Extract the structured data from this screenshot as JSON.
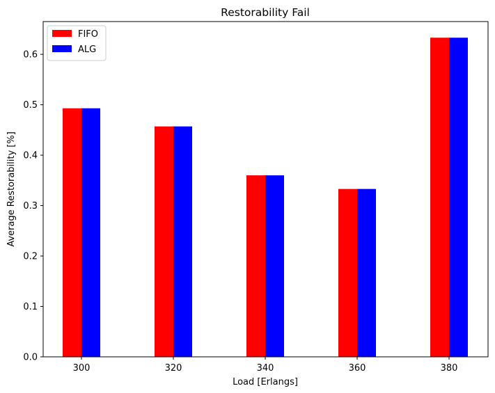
{
  "chart_data": {
    "type": "bar",
    "title": "Restorability Fail",
    "xlabel": "Load [Erlangs]",
    "ylabel": "Average Restorability [%]",
    "categories": [
      "300",
      "320",
      "340",
      "360",
      "380"
    ],
    "series": [
      {
        "name": "FIFO",
        "color": "#ff0000",
        "values": [
          0.493,
          0.457,
          0.36,
          0.333,
          0.633
        ]
      },
      {
        "name": "ALG",
        "color": "#0000ff",
        "values": [
          0.493,
          0.457,
          0.36,
          0.333,
          0.633
        ]
      }
    ],
    "ylim": [
      0,
      0.665
    ],
    "yticks": [
      0.0,
      0.1,
      0.2,
      0.3,
      0.4,
      0.5,
      0.6
    ],
    "ytick_labels": [
      "0.0",
      "0.1",
      "0.2",
      "0.3",
      "0.4",
      "0.5",
      "0.6"
    ],
    "grid": false,
    "legend_position": "top-left"
  }
}
